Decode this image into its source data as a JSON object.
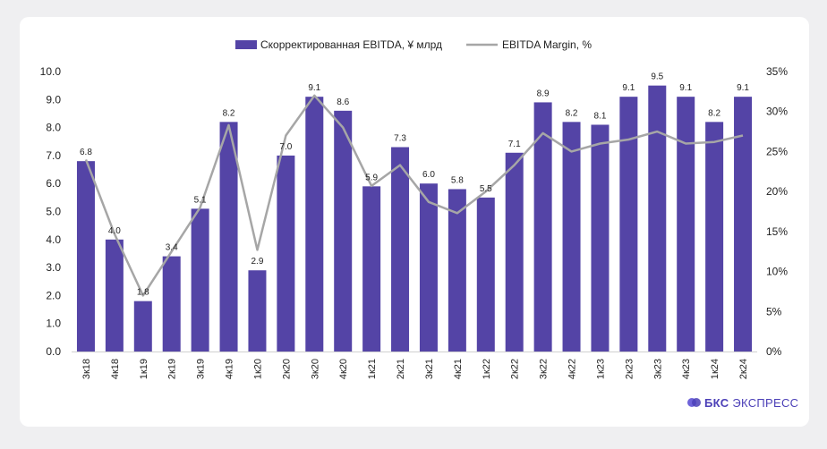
{
  "chart_data": {
    "type": "bar",
    "categories": [
      "3к18",
      "4к18",
      "1к19",
      "2к19",
      "3к19",
      "4к19",
      "1к20",
      "2к20",
      "3к20",
      "4к20",
      "1к21",
      "2к21",
      "3к21",
      "4к21",
      "1к22",
      "2к22",
      "3к22",
      "4к22",
      "1к23",
      "2к23",
      "3к23",
      "4к23",
      "1к24",
      "2к24"
    ],
    "series": [
      {
        "name": "Скорректированная EBITDA, ¥ млрд",
        "type": "bar",
        "axis": "left",
        "color": "#5444a6",
        "values": [
          6.8,
          4.0,
          1.8,
          3.4,
          5.1,
          8.2,
          2.9,
          7.0,
          9.1,
          8.6,
          5.9,
          7.3,
          6.0,
          5.8,
          5.5,
          7.1,
          8.9,
          8.2,
          8.1,
          9.1,
          9.5,
          9.1,
          8.2,
          9.1
        ],
        "labels": [
          "6.8",
          "4.0",
          "1.8",
          "3.4",
          "5.1",
          "8.2",
          "2.9",
          "7.0",
          "9.1",
          "8.6",
          "5.9",
          "7.3",
          "6.0",
          "5.8",
          "5.5",
          "7.1",
          "8.9",
          "8.2",
          "8.1",
          "9.1",
          "9.5",
          "9.1",
          "8.2",
          "9.1"
        ]
      },
      {
        "name": "EBITDA Margin, %",
        "type": "line",
        "axis": "right",
        "color": "#a6a6a6",
        "values": [
          24.0,
          14.7,
          7.0,
          12.5,
          18.0,
          28.3,
          12.7,
          27.0,
          32.0,
          28.0,
          20.7,
          23.3,
          18.7,
          17.3,
          20.0,
          23.3,
          27.3,
          25.0,
          26.0,
          26.5,
          27.5,
          26.0,
          26.2,
          27.0
        ]
      }
    ],
    "y_left": {
      "min": 0,
      "max": 10,
      "step": 1,
      "tick_labels": [
        "0.0",
        "1.0",
        "2.0",
        "3.0",
        "4.0",
        "5.0",
        "6.0",
        "7.0",
        "8.0",
        "9.0",
        "10.0"
      ]
    },
    "y_right": {
      "min": 0,
      "max": 35,
      "step": 5,
      "tick_labels": [
        "0%",
        "5%",
        "10%",
        "15%",
        "20%",
        "25%",
        "30%",
        "35%"
      ]
    },
    "legend_position": "top-center",
    "grid": false
  },
  "brand": {
    "bold": "БКС",
    "rest": "ЭКСПРЕСС",
    "color": "#4b3fb7"
  }
}
